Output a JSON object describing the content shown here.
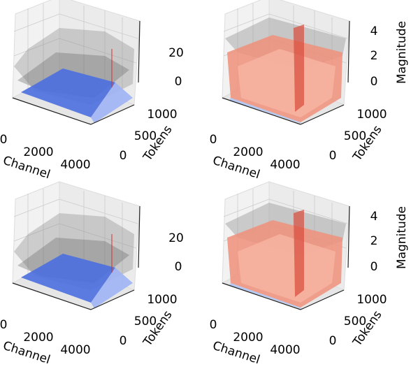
{
  "panels": [
    {
      "x_label": "Channel",
      "x_ticks": [
        0,
        2000,
        4000
      ],
      "y_label": "Tokens",
      "y_ticks": [
        0,
        500,
        1000
      ],
      "z_ticks": [
        0,
        20
      ]
    },
    {
      "x_label": "Channel",
      "x_ticks": [
        0,
        2000,
        4000
      ],
      "y_label": "Tokens",
      "y_ticks": [
        0,
        500,
        1000
      ],
      "z_label": "Magnitude",
      "z_ticks": [
        0,
        2,
        4
      ]
    },
    {
      "x_label": "Channel",
      "x_ticks": [
        0,
        2000,
        4000
      ],
      "y_label": "Tokens",
      "y_ticks": [
        0,
        500,
        1000
      ],
      "z_ticks": [
        0,
        20
      ]
    },
    {
      "x_label": "Channel",
      "x_ticks": [
        0,
        2000,
        4000
      ],
      "y_label": "Tokens",
      "y_ticks": [
        0,
        500,
        1000
      ],
      "z_label": "Magnitude",
      "z_ticks": [
        0,
        2,
        4
      ]
    }
  ]
}
